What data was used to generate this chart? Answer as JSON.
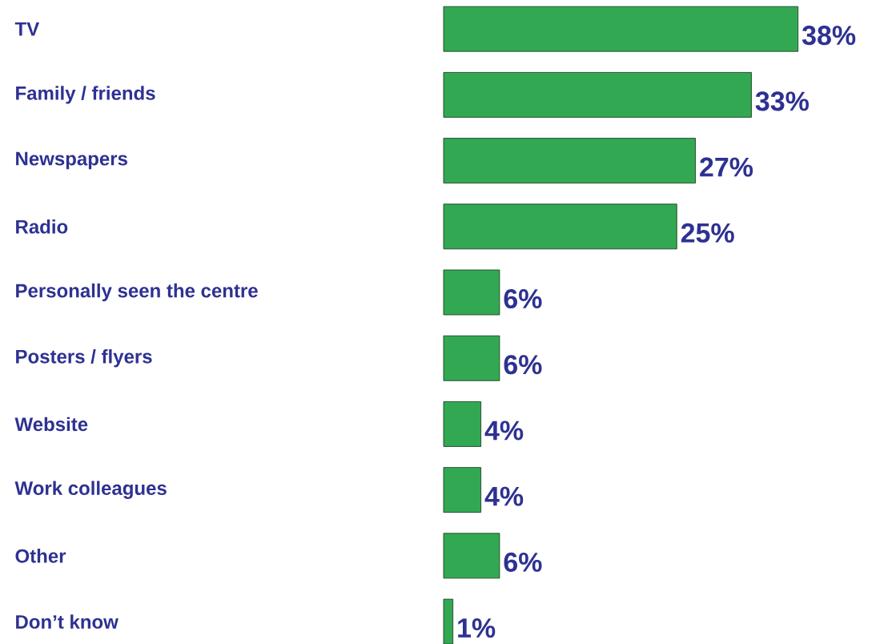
{
  "chart_data": {
    "type": "bar",
    "orientation": "horizontal",
    "categories": [
      "TV",
      "Family / friends",
      "Newspapers",
      "Radio",
      "Personally seen the centre",
      "Posters / flyers",
      "Website",
      "Work colleagues",
      "Other",
      "Don’t know"
    ],
    "values": [
      38,
      33,
      27,
      25,
      6,
      6,
      4,
      4,
      6,
      1
    ],
    "value_labels": [
      "38%",
      "33%",
      "27%",
      "25%",
      "6%",
      "6%",
      "4%",
      "4%",
      "6%",
      "1%"
    ],
    "color": "#33a852",
    "tick_labels": "y"
  }
}
